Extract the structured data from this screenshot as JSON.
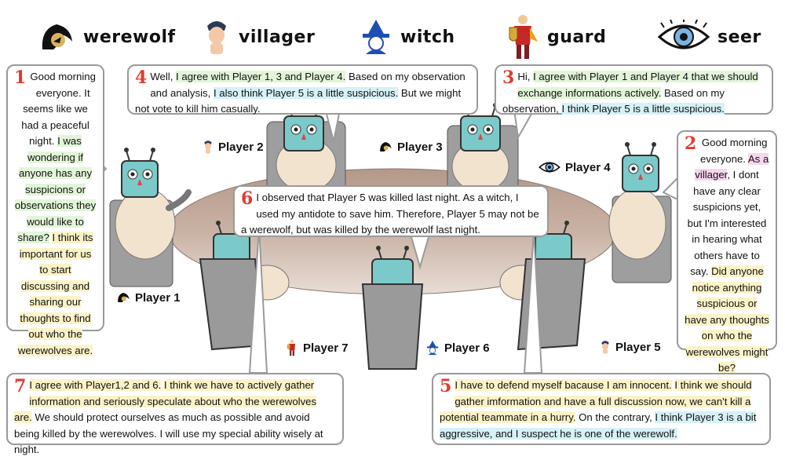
{
  "legend": [
    {
      "icon": "werewolf-icon",
      "label": "werewolf"
    },
    {
      "icon": "villager-icon",
      "label": "villager"
    },
    {
      "icon": "witch-icon",
      "label": "witch"
    },
    {
      "icon": "guard-icon",
      "label": "guard"
    },
    {
      "icon": "seer-icon",
      "label": "seer"
    }
  ],
  "players": {
    "p1": "Player 1",
    "p2": "Player 2",
    "p3": "Player 3",
    "p4": "Player 4",
    "p5": "Player 5",
    "p6": "Player 6",
    "p7": "Player 7"
  },
  "bubbles": {
    "b1": {
      "num": "1",
      "segments": [
        {
          "text": "Good morning everyone. It seems like we had a peaceful night. ",
          "hl": ""
        },
        {
          "text": "I was wondering if anyone has any suspicions or observations they would like to share?",
          "hl": "g"
        },
        {
          "text": " ",
          "hl": ""
        },
        {
          "text": "I think its important for us to start discussing and sharing our thoughts to find out who the werewolves are.",
          "hl": "y"
        }
      ]
    },
    "b2": {
      "num": "2",
      "segments": [
        {
          "text": "Good morning everyone. ",
          "hl": ""
        },
        {
          "text": "As a villager",
          "hl": "p"
        },
        {
          "text": ", I dont have any clear suspicions yet, but I'm interested in hearing what others have to say. ",
          "hl": ""
        },
        {
          "text": "Did anyone notice anything suspicious or have any thoughts on who the werewolves might be?",
          "hl": "y"
        }
      ]
    },
    "b3": {
      "num": "3",
      "segments": [
        {
          "text": "Hi, ",
          "hl": ""
        },
        {
          "text": "I agree with Player 1 and Player 4 that we should exchange informations actively.",
          "hl": "g"
        },
        {
          "text": " Based on my observation, ",
          "hl": ""
        },
        {
          "text": "I think Player 5 is a little suspicious.",
          "hl": "b"
        }
      ]
    },
    "b4": {
      "num": "4",
      "segments": [
        {
          "text": "Well, ",
          "hl": ""
        },
        {
          "text": "I agree with Player 1, 3 and Player 4.",
          "hl": "g"
        },
        {
          "text": " Based on my observation and analysis, ",
          "hl": ""
        },
        {
          "text": "I also think Player 5 is a little suspicious.",
          "hl": "b"
        },
        {
          "text": " But we might not vote to kill him casually.",
          "hl": ""
        }
      ]
    },
    "b5": {
      "num": "5",
      "segments": [
        {
          "text": "I have to defend myself bacause I am innocent.",
          "hl": "y"
        },
        {
          "text": " ",
          "hl": ""
        },
        {
          "text": "I think we should gather imformation and have a full discussion now, we can't kill a potential teammate in a hurry.",
          "hl": "y"
        },
        {
          "text": " On the contrary, ",
          "hl": ""
        },
        {
          "text": "I think Player 3 is a bit aggressive, and I suspect he is one of the werewolf.",
          "hl": "b"
        }
      ]
    },
    "b6": {
      "num": "6",
      "segments": [
        {
          "text": "I observed that Player 5 was killed last night.",
          "hl": ""
        },
        {
          "text": " As a witch, I used my antidote to save him. Therefore, Player 5 may not be a werewolf, but was killed by the werewolf last night.",
          "hl": ""
        }
      ]
    },
    "b7": {
      "num": "7",
      "segments": [
        {
          "text": "I agree with Player1,2 and 6.",
          "hl": "y"
        },
        {
          "text": " ",
          "hl": ""
        },
        {
          "text": "I think we have to actively gather information and seriously speculate about who the werewolves are.",
          "hl": "y"
        },
        {
          "text": " We should protect ourselves as much as possible and avoid being killed by the werewolves. I will use my special ability wisely at night.",
          "hl": ""
        }
      ]
    }
  }
}
